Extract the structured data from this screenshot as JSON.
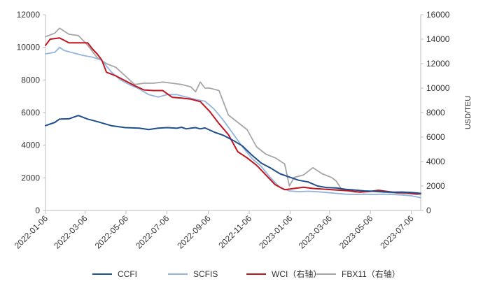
{
  "chart_data": {
    "type": "line",
    "title": "",
    "xlabel": "",
    "ylabel_left": "",
    "ylabel_right": "USD/TEU",
    "ylim_left": [
      0,
      12000
    ],
    "ylim_right": [
      0,
      16000
    ],
    "yticks_left": [
      0,
      2000,
      4000,
      6000,
      8000,
      10000,
      12000
    ],
    "yticks_right": [
      0,
      2000,
      4000,
      6000,
      8000,
      10000,
      12000,
      14000,
      16000
    ],
    "grid": false,
    "legend_position": "bottom",
    "x_domain": [
      "2022-01-06",
      "2023-07-20"
    ],
    "x_tick_labels": [
      "2022-01-06",
      "2022-03-06",
      "2022-05-06",
      "2022-07-06",
      "2022-09-06",
      "2022-11-06",
      "2023-01-06",
      "2023-03-06",
      "2023-05-06",
      "2023-07-06"
    ],
    "series": [
      {
        "name": "CCFI",
        "axis": "left",
        "color": "#1f4e8c",
        "points": [
          [
            "2022-01-06",
            5200
          ],
          [
            "2022-01-20",
            5400
          ],
          [
            "2022-01-27",
            5600
          ],
          [
            "2022-02-10",
            5620
          ],
          [
            "2022-02-24",
            5820
          ],
          [
            "2022-03-10",
            5600
          ],
          [
            "2022-03-24",
            5450
          ],
          [
            "2022-04-14",
            5200
          ],
          [
            "2022-05-05",
            5080
          ],
          [
            "2022-05-26",
            5050
          ],
          [
            "2022-06-09",
            4960
          ],
          [
            "2022-06-23",
            5050
          ],
          [
            "2022-07-07",
            5080
          ],
          [
            "2022-07-21",
            5040
          ],
          [
            "2022-07-28",
            5100
          ],
          [
            "2022-08-04",
            5000
          ],
          [
            "2022-08-11",
            5050
          ],
          [
            "2022-08-18",
            5080
          ],
          [
            "2022-08-25",
            5000
          ],
          [
            "2022-09-01",
            5060
          ],
          [
            "2022-09-15",
            4800
          ],
          [
            "2022-09-29",
            4600
          ],
          [
            "2022-10-13",
            4300
          ],
          [
            "2022-10-27",
            3950
          ],
          [
            "2022-11-10",
            3400
          ],
          [
            "2022-11-24",
            2900
          ],
          [
            "2022-12-08",
            2600
          ],
          [
            "2022-12-22",
            2250
          ],
          [
            "2023-01-05",
            2050
          ],
          [
            "2023-01-19",
            1850
          ],
          [
            "2023-02-02",
            1750
          ],
          [
            "2023-02-16",
            1500
          ],
          [
            "2023-03-02",
            1400
          ],
          [
            "2023-03-16",
            1380
          ],
          [
            "2023-03-30",
            1300
          ],
          [
            "2023-04-13",
            1250
          ],
          [
            "2023-04-27",
            1200
          ],
          [
            "2023-05-11",
            1180
          ],
          [
            "2023-05-25",
            1150
          ],
          [
            "2023-06-08",
            1120
          ],
          [
            "2023-06-22",
            1130
          ],
          [
            "2023-07-06",
            1100
          ],
          [
            "2023-07-20",
            1050
          ]
        ]
      },
      {
        "name": "SCFIS",
        "axis": "left",
        "color": "#92b4df",
        "points": [
          [
            "2022-01-06",
            9600
          ],
          [
            "2022-01-20",
            9700
          ],
          [
            "2022-01-27",
            10000
          ],
          [
            "2022-02-03",
            9800
          ],
          [
            "2022-02-17",
            9650
          ],
          [
            "2022-03-03",
            9500
          ],
          [
            "2022-03-17",
            9400
          ],
          [
            "2022-03-31",
            9200
          ],
          [
            "2022-04-14",
            8500
          ],
          [
            "2022-04-28",
            8000
          ],
          [
            "2022-05-12",
            7700
          ],
          [
            "2022-05-26",
            7450
          ],
          [
            "2022-06-09",
            7100
          ],
          [
            "2022-06-23",
            6950
          ],
          [
            "2022-07-07",
            7100
          ],
          [
            "2022-07-21",
            7100
          ],
          [
            "2022-08-04",
            6950
          ],
          [
            "2022-08-18",
            6800
          ],
          [
            "2022-09-01",
            6700
          ],
          [
            "2022-09-15",
            6200
          ],
          [
            "2022-09-29",
            5500
          ],
          [
            "2022-10-13",
            4700
          ],
          [
            "2022-10-27",
            3900
          ],
          [
            "2022-11-10",
            3200
          ],
          [
            "2022-11-24",
            2700
          ],
          [
            "2022-12-08",
            2000
          ],
          [
            "2022-12-22",
            1400
          ],
          [
            "2023-01-05",
            1200
          ],
          [
            "2023-01-19",
            1150
          ],
          [
            "2023-02-02",
            1180
          ],
          [
            "2023-02-16",
            1150
          ],
          [
            "2023-03-02",
            1100
          ],
          [
            "2023-03-16",
            1050
          ],
          [
            "2023-03-30",
            1000
          ],
          [
            "2023-04-13",
            980
          ],
          [
            "2023-04-27",
            1000
          ],
          [
            "2023-05-11",
            980
          ],
          [
            "2023-05-25",
            1000
          ],
          [
            "2023-06-08",
            980
          ],
          [
            "2023-06-22",
            950
          ],
          [
            "2023-07-06",
            900
          ],
          [
            "2023-07-20",
            780
          ]
        ]
      },
      {
        "name": "WCI（右轴）",
        "axis": "right",
        "color": "#c0141e",
        "points": [
          [
            "2022-01-06",
            13500
          ],
          [
            "2022-01-13",
            14000
          ],
          [
            "2022-01-27",
            14100
          ],
          [
            "2022-02-10",
            13700
          ],
          [
            "2022-02-24",
            13700
          ],
          [
            "2022-03-10",
            13700
          ],
          [
            "2022-03-17",
            13200
          ],
          [
            "2022-03-24",
            12800
          ],
          [
            "2022-03-31",
            12300
          ],
          [
            "2022-04-07",
            11300
          ],
          [
            "2022-04-21",
            11000
          ],
          [
            "2022-05-05",
            10600
          ],
          [
            "2022-05-19",
            10200
          ],
          [
            "2022-06-02",
            9850
          ],
          [
            "2022-06-16",
            9800
          ],
          [
            "2022-06-30",
            9800
          ],
          [
            "2022-07-14",
            9250
          ],
          [
            "2022-07-28",
            9180
          ],
          [
            "2022-08-11",
            9100
          ],
          [
            "2022-08-25",
            8900
          ],
          [
            "2022-09-08",
            8100
          ],
          [
            "2022-09-22",
            7100
          ],
          [
            "2022-10-06",
            6200
          ],
          [
            "2022-10-20",
            4800
          ],
          [
            "2022-11-03",
            4300
          ],
          [
            "2022-11-17",
            3700
          ],
          [
            "2022-12-01",
            2900
          ],
          [
            "2022-12-15",
            2100
          ],
          [
            "2022-12-29",
            1700
          ],
          [
            "2023-01-12",
            1800
          ],
          [
            "2023-01-26",
            1900
          ],
          [
            "2023-02-09",
            1800
          ],
          [
            "2023-02-23",
            1750
          ],
          [
            "2023-03-09",
            1700
          ],
          [
            "2023-03-23",
            1650
          ],
          [
            "2023-04-06",
            1600
          ],
          [
            "2023-04-20",
            1500
          ],
          [
            "2023-05-04",
            1550
          ],
          [
            "2023-05-18",
            1650
          ],
          [
            "2023-06-01",
            1550
          ],
          [
            "2023-06-15",
            1450
          ],
          [
            "2023-06-29",
            1450
          ],
          [
            "2023-07-13",
            1350
          ],
          [
            "2023-07-20",
            1400
          ]
        ]
      },
      {
        "name": "FBX11（右轴）",
        "axis": "right",
        "color": "#a6a6a6",
        "points": [
          [
            "2022-01-06",
            14200
          ],
          [
            "2022-01-20",
            14500
          ],
          [
            "2022-01-27",
            14900
          ],
          [
            "2022-02-10",
            14400
          ],
          [
            "2022-02-24",
            14300
          ],
          [
            "2022-03-10",
            13500
          ],
          [
            "2022-03-24",
            12500
          ],
          [
            "2022-04-07",
            12000
          ],
          [
            "2022-04-21",
            11700
          ],
          [
            "2022-05-05",
            11000
          ],
          [
            "2022-05-19",
            10300
          ],
          [
            "2022-06-02",
            10400
          ],
          [
            "2022-06-16",
            10400
          ],
          [
            "2022-06-30",
            10500
          ],
          [
            "2022-07-14",
            10400
          ],
          [
            "2022-07-28",
            10300
          ],
          [
            "2022-08-11",
            10100
          ],
          [
            "2022-08-18",
            9700
          ],
          [
            "2022-08-25",
            10500
          ],
          [
            "2022-09-01",
            10000
          ],
          [
            "2022-09-08",
            10000
          ],
          [
            "2022-09-22",
            9800
          ],
          [
            "2022-10-06",
            7800
          ],
          [
            "2022-10-20",
            7200
          ],
          [
            "2022-11-03",
            6600
          ],
          [
            "2022-11-17",
            5200
          ],
          [
            "2022-12-01",
            4600
          ],
          [
            "2022-12-15",
            4300
          ],
          [
            "2022-12-29",
            3800
          ],
          [
            "2023-01-05",
            2000
          ],
          [
            "2023-01-12",
            2700
          ],
          [
            "2023-01-26",
            2900
          ],
          [
            "2023-02-09",
            3500
          ],
          [
            "2023-02-23",
            3000
          ],
          [
            "2023-03-09",
            2700
          ],
          [
            "2023-03-16",
            2400
          ],
          [
            "2023-03-23",
            1800
          ],
          [
            "2023-03-30",
            1650
          ],
          [
            "2023-04-13",
            1500
          ],
          [
            "2023-04-27",
            1550
          ],
          [
            "2023-05-11",
            1550
          ],
          [
            "2023-05-25",
            1500
          ],
          [
            "2023-06-08",
            1450
          ],
          [
            "2023-06-22",
            1400
          ],
          [
            "2023-07-06",
            1350
          ],
          [
            "2023-07-20",
            1300
          ]
        ]
      }
    ]
  }
}
